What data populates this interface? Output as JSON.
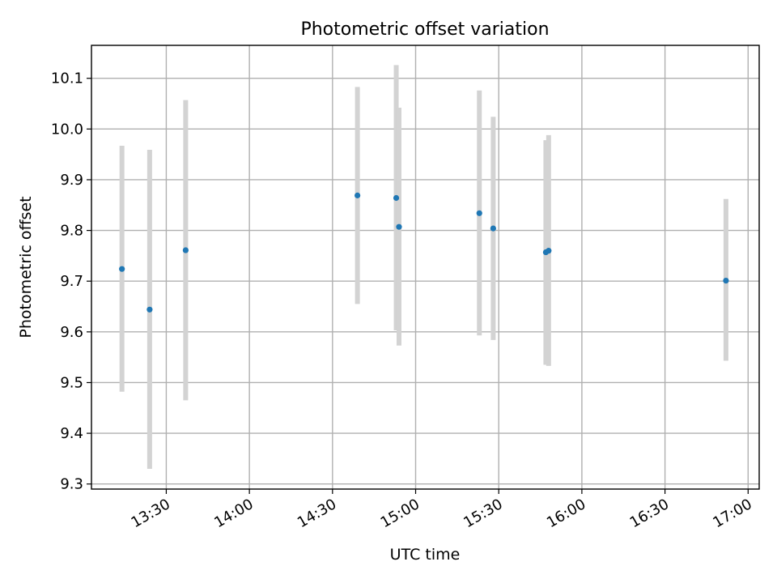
{
  "chart_data": {
    "type": "scatter",
    "title": "Photometric offset variation",
    "xlabel": "UTC time",
    "ylabel": "Photometric offset",
    "x_axis": {
      "kind": "time",
      "range": [
        "13:03",
        "17:04"
      ],
      "ticks": [
        "13:30",
        "14:00",
        "14:30",
        "15:00",
        "15:30",
        "16:00",
        "16:30",
        "17:00"
      ]
    },
    "y_axis": {
      "range": [
        9.29,
        10.165
      ],
      "ticks": [
        "9.3",
        "9.4",
        "9.5",
        "9.6",
        "9.7",
        "9.8",
        "9.9",
        "10.0",
        "10.1"
      ]
    },
    "grid": true,
    "point_color": "#1f77b4",
    "errorbar_color": "#d3d3d3",
    "series": [
      {
        "points": [
          {
            "x": "13:14",
            "y": 9.724,
            "low": 9.482,
            "high": 9.967
          },
          {
            "x": "13:24",
            "y": 9.644,
            "low": 9.33,
            "high": 9.959
          },
          {
            "x": "13:37",
            "y": 9.761,
            "low": 9.465,
            "high": 10.057
          },
          {
            "x": "14:39",
            "y": 9.869,
            "low": 9.655,
            "high": 10.083
          },
          {
            "x": "14:53",
            "y": 9.864,
            "low": 9.603,
            "high": 10.126
          },
          {
            "x": "14:54",
            "y": 9.807,
            "low": 9.573,
            "high": 10.042
          },
          {
            "x": "15:23",
            "y": 9.834,
            "low": 9.593,
            "high": 10.076
          },
          {
            "x": "15:28",
            "y": 9.804,
            "low": 9.584,
            "high": 10.024
          },
          {
            "x": "15:47",
            "y": 9.757,
            "low": 9.535,
            "high": 9.978
          },
          {
            "x": "15:48",
            "y": 9.76,
            "low": 9.533,
            "high": 9.988
          },
          {
            "x": "16:52",
            "y": 9.701,
            "low": 9.543,
            "high": 9.862
          }
        ]
      }
    ]
  }
}
